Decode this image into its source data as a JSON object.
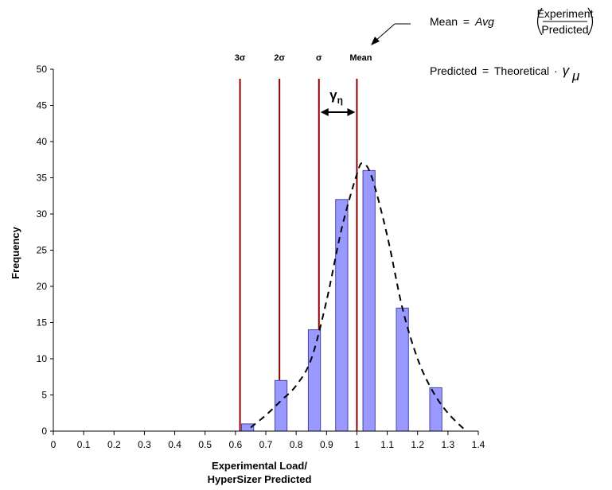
{
  "chart_data": {
    "type": "bar",
    "title": "",
    "xlabel_lines": [
      "Experimental Load/",
      "HyperSizer Predicted"
    ],
    "ylabel": "Frequency",
    "xlim": [
      0,
      1.4
    ],
    "ylim": [
      0,
      50
    ],
    "x_ticks": [
      "0",
      "0.1",
      "0.2",
      "0.3",
      "0.4",
      "0.5",
      "0.6",
      "0.7",
      "0.8",
      "0.9",
      "1",
      "1.1",
      "1.2",
      "1.3",
      "1.4"
    ],
    "x_tick_values": [
      0,
      0.1,
      0.2,
      0.3,
      0.4,
      0.5,
      0.6,
      0.7,
      0.8,
      0.9,
      1.0,
      1.1,
      1.2,
      1.3,
      1.4
    ],
    "y_ticks": [
      "0",
      "5",
      "10",
      "15",
      "20",
      "25",
      "30",
      "35",
      "40",
      "45",
      "50"
    ],
    "y_tick_values": [
      0,
      5,
      10,
      15,
      20,
      25,
      30,
      35,
      40,
      45,
      50
    ],
    "bars": [
      {
        "x": 0.64,
        "value": 1
      },
      {
        "x": 0.75,
        "value": 7
      },
      {
        "x": 0.86,
        "value": 14
      },
      {
        "x": 0.95,
        "value": 32
      },
      {
        "x": 1.04,
        "value": 36
      },
      {
        "x": 1.15,
        "value": 17
      },
      {
        "x": 1.26,
        "value": 6
      }
    ],
    "bar_width": 0.04,
    "bar_color": "#9999ff",
    "fit_curve": {
      "style": "dashed",
      "color": "#000000",
      "points": [
        [
          0.65,
          0.5
        ],
        [
          0.7,
          2.2
        ],
        [
          0.75,
          4.2
        ],
        [
          0.8,
          6.3
        ],
        [
          0.85,
          10
        ],
        [
          0.9,
          18
        ],
        [
          0.95,
          28
        ],
        [
          1.0,
          35.5
        ],
        [
          1.02,
          37
        ],
        [
          1.05,
          35
        ],
        [
          1.1,
          27
        ],
        [
          1.15,
          17
        ],
        [
          1.2,
          10
        ],
        [
          1.25,
          5.5
        ],
        [
          1.3,
          2.5
        ],
        [
          1.36,
          0
        ]
      ]
    },
    "sigma_lines": [
      {
        "label": "3σ",
        "x": 0.615
      },
      {
        "label": "2σ",
        "x": 0.745
      },
      {
        "label": "σ",
        "x": 0.875
      },
      {
        "label": "Mean",
        "x": 1.0
      }
    ],
    "sigma_line_color": "#8b0000",
    "gamma_label": "γ",
    "gamma_subscript": "η",
    "annotations": {
      "mean_formula": {
        "lhs": "Mean",
        "eq": "=",
        "func": "Avg",
        "numerator": "Experiment",
        "denominator": "Predicted"
      },
      "predicted_formula": {
        "lhs": "Predicted",
        "eq": "=",
        "rhs": "Theoretical",
        "dot": "·",
        "gamma": "γ",
        "mu": "μ"
      }
    }
  }
}
